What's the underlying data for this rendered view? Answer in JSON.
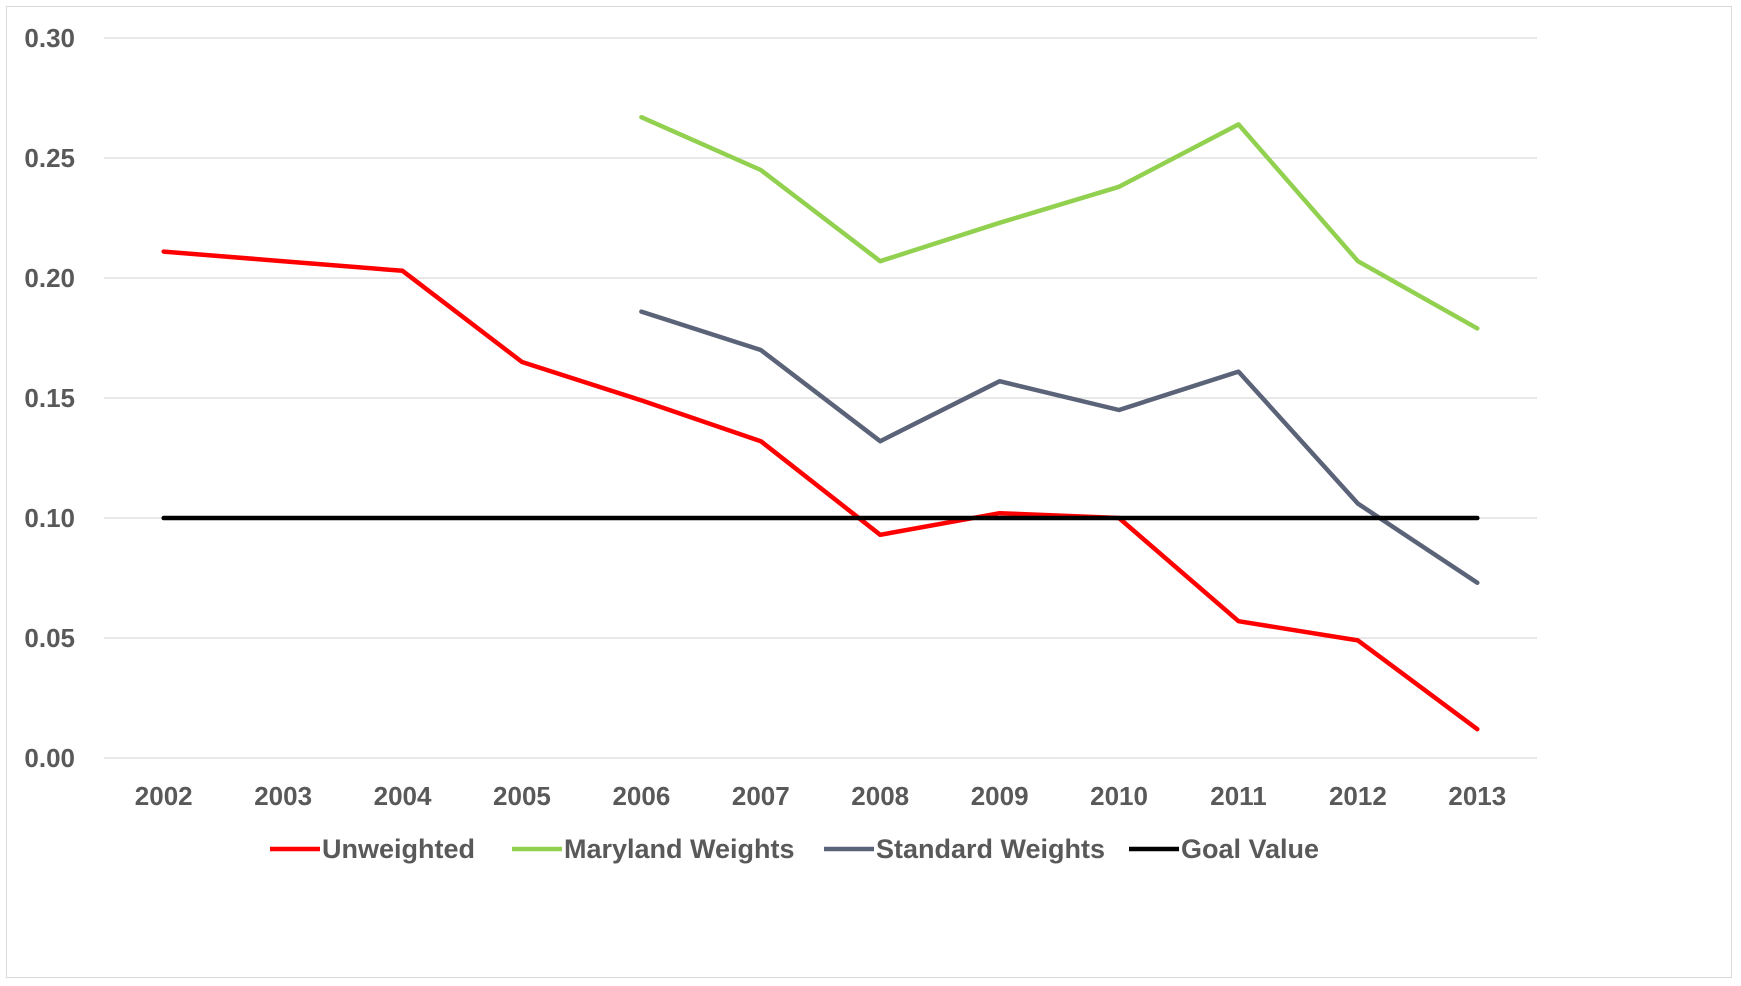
{
  "chart_data": {
    "type": "line",
    "title": "",
    "xlabel": "",
    "ylabel": "",
    "categories": [
      "2002",
      "2003",
      "2004",
      "2005",
      "2006",
      "2007",
      "2008",
      "2009",
      "2010",
      "2011",
      "2012",
      "2013"
    ],
    "y_ticks": [
      "0.00",
      "0.05",
      "0.10",
      "0.15",
      "0.20",
      "0.25",
      "0.30"
    ],
    "ylim": [
      0,
      0.3
    ],
    "grid": true,
    "legend_position": "bottom",
    "series": [
      {
        "name": "Unweighted",
        "color": "#ff0000",
        "values": [
          0.211,
          0.207,
          0.203,
          0.165,
          0.149,
          0.132,
          0.093,
          0.102,
          0.1,
          0.057,
          0.049,
          0.012
        ]
      },
      {
        "name": "Maryland Weights",
        "color": "#92d050",
        "values": [
          null,
          null,
          null,
          null,
          0.267,
          0.245,
          0.207,
          0.223,
          0.238,
          0.264,
          0.207,
          0.179
        ]
      },
      {
        "name": "Standard Weights",
        "color": "#5b6378",
        "values": [
          null,
          null,
          null,
          null,
          0.186,
          0.17,
          0.132,
          0.157,
          0.145,
          0.161,
          0.106,
          0.073
        ]
      },
      {
        "name": "Goal Value",
        "color": "#000000",
        "values": [
          0.1,
          0.1,
          0.1,
          0.1,
          0.1,
          0.1,
          0.1,
          0.1,
          0.1,
          0.1,
          0.1,
          0.1
        ]
      }
    ]
  }
}
